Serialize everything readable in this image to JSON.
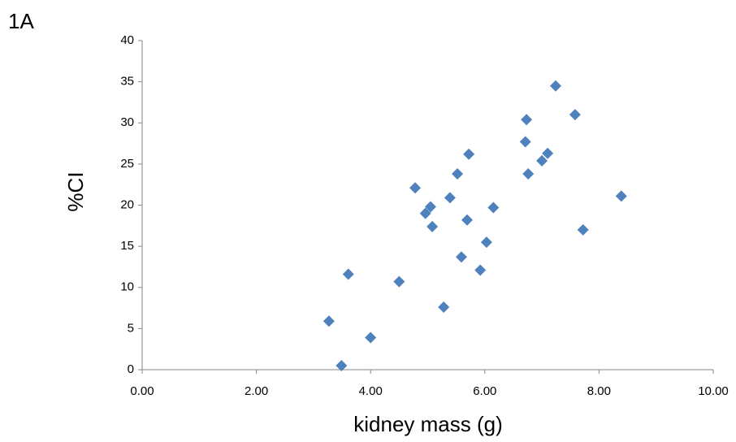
{
  "chart_data": {
    "type": "scatter",
    "panel_label": "1A",
    "x_label": "kidney mass (g)",
    "y_label": "%CI",
    "color": "#4f81bd",
    "x": [
      3.27,
      3.49,
      3.61,
      4.0,
      4.5,
      4.78,
      4.96,
      5.05,
      5.08,
      5.28,
      5.39,
      5.52,
      5.59,
      5.69,
      5.72,
      5.92,
      6.03,
      6.15,
      6.71,
      6.73,
      6.76,
      7.0,
      7.1,
      7.24,
      7.58,
      7.72,
      8.39
    ],
    "values": [
      5.9,
      0.5,
      11.6,
      3.9,
      10.7,
      22.1,
      19.0,
      19.8,
      17.4,
      7.6,
      20.9,
      23.8,
      13.7,
      18.2,
      26.2,
      12.1,
      15.5,
      19.7,
      27.7,
      30.4,
      23.8,
      25.4,
      26.3,
      34.5,
      31.0,
      17.0,
      21.1
    ],
    "xlim": [
      0,
      10
    ],
    "xticks": [
      {
        "value": 0,
        "label": "0.00"
      },
      {
        "value": 2,
        "label": "2.00"
      },
      {
        "value": 4,
        "label": "4.00"
      },
      {
        "value": 6,
        "label": "6.00"
      },
      {
        "value": 8,
        "label": "8.00"
      },
      {
        "value": 10,
        "label": "10.00"
      }
    ],
    "ylim": [
      0,
      40
    ],
    "yticks": [
      0,
      5,
      10,
      15,
      20,
      25,
      30,
      35,
      40
    ]
  }
}
